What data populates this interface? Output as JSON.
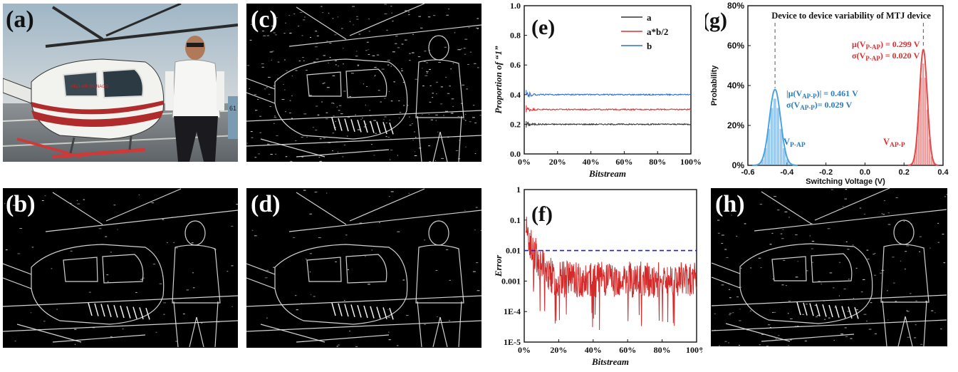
{
  "panels": {
    "a": {
      "label": "(a)"
    },
    "b": {
      "label": "(b)"
    },
    "c": {
      "label": "(c)"
    },
    "d": {
      "label": "(d)"
    },
    "h": {
      "label": "(h)"
    },
    "a_scene": {
      "logo": "HELI AIR MONACO",
      "registration": "61"
    }
  },
  "colors": {
    "series_a": "#333333",
    "series_ab2": "#e03030",
    "series_b": "#2f6fd0",
    "error_line": "#d42a2a",
    "threshold": "#1a1aee",
    "g_blue": "#4aa3e0",
    "g_red": "#e24a4a",
    "g_blue_text": "#2b7bbf",
    "g_red_text": "#d93030"
  },
  "chart_data": [
    {
      "id": "e",
      "panel_label": "(e)",
      "type": "line",
      "xlabel": "Bitstream",
      "ylabel": "Proportion of “1”",
      "xlim": [
        0,
        100
      ],
      "ylim": [
        0,
        1.0
      ],
      "xticks": [
        "0%",
        "20%",
        "40%",
        "60%",
        "80%",
        "100%"
      ],
      "yticks": [
        "0.0",
        "0.2",
        "0.4",
        "0.6",
        "0.8",
        "1.0"
      ],
      "legend_position": "top-right",
      "series": [
        {
          "name": "a",
          "level": 0.2,
          "noise_start": 0.03
        },
        {
          "name": "a*b/2",
          "level": 0.3,
          "noise_start": 0.03
        },
        {
          "name": "b",
          "level": 0.4,
          "noise_start": 0.04
        }
      ]
    },
    {
      "id": "f",
      "panel_label": "(f)",
      "type": "line",
      "xlabel": "Bitstream",
      "ylabel": "Error",
      "yscale": "log",
      "xlim": [
        0,
        100
      ],
      "ylim": [
        1e-05,
        1
      ],
      "xticks": [
        "0%",
        "20%",
        "40%",
        "60%",
        "80%",
        "100%"
      ],
      "yticks": [
        "1E-5",
        "1E-4",
        "0.001",
        "0.01",
        "0.1",
        "1"
      ],
      "threshold": 0.01,
      "series": [
        {
          "start": 0.06,
          "median": 0.0015,
          "min": 2e-05
        }
      ]
    },
    {
      "id": "g",
      "panel_label": "(g)",
      "type": "histogram",
      "title": "Device to device variability of MTJ device",
      "xlabel": "Switching Voltage (V)",
      "ylabel": "Probability",
      "xlim": [
        -0.6,
        0.4
      ],
      "ylim": [
        0,
        80
      ],
      "xticks": [
        "-0.6",
        "-0.4",
        "-0.2",
        "0.0",
        "0.2",
        "0.4"
      ],
      "yticks": [
        "0%",
        "20%",
        "40%",
        "60%",
        "80%"
      ],
      "series": [
        {
          "name": "V_P-AP",
          "mean": -0.461,
          "sigma": 0.029,
          "peak": 38,
          "stat1": "|μ(V",
          "stat1_sub": "AP-P",
          "stat1_tail": ")| = 0.461 V",
          "stat2": "σ(V",
          "stat2_sub": "AP-P",
          "stat2_tail": ")= 0.029 V",
          "tag": "V",
          "tag_sub": "P-AP"
        },
        {
          "name": "V_AP-P",
          "mean": 0.299,
          "sigma": 0.02,
          "peak": 58,
          "stat1": "μ(V",
          "stat1_sub": "P-AP",
          "stat1_tail": ") = 0.299 V",
          "stat2": "σ(V",
          "stat2_sub": "P-AP",
          "stat2_tail": ") = 0.020 V",
          "tag": "V",
          "tag_sub": "AP-P"
        }
      ]
    }
  ]
}
